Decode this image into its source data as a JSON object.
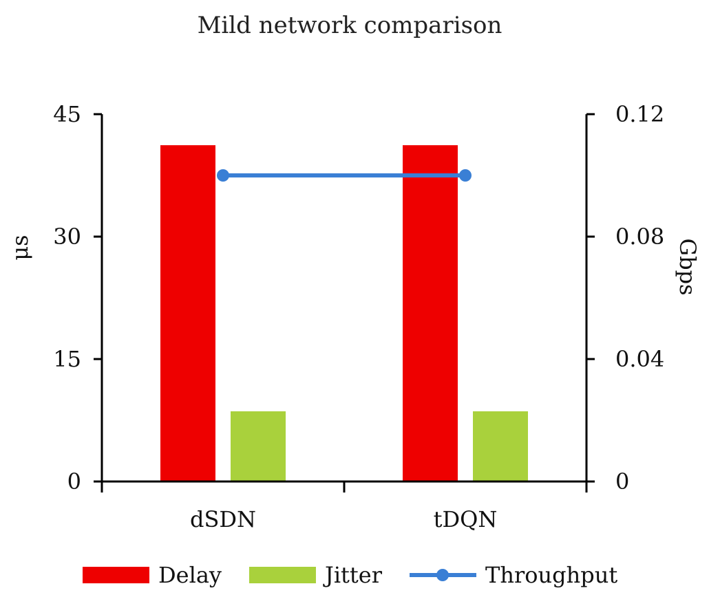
{
  "chart_data": {
    "type": "bar",
    "title": "Mild network  comparison",
    "categories": [
      "dSDN",
      "tDQN"
    ],
    "series": [
      {
        "name": "Delay",
        "kind": "bar",
        "axis": "left",
        "color": "#ee0000",
        "values": [
          41.2,
          41.2
        ]
      },
      {
        "name": "Jitter",
        "kind": "bar",
        "axis": "left",
        "color": "#a9d13c",
        "values": [
          8.6,
          8.6
        ]
      },
      {
        "name": "Throughput",
        "kind": "line",
        "axis": "right",
        "color": "#3a7fd5",
        "values": [
          0.1,
          0.1
        ]
      }
    ],
    "ylabel": "μs",
    "ylabel_right": "Gbps",
    "ylim": [
      0,
      45
    ],
    "ylim_right": [
      0,
      0.12
    ],
    "yticks": [
      "0",
      "15",
      "30",
      "45"
    ],
    "yticks_right": [
      "0",
      "0.04",
      "0.08",
      "0.12"
    ],
    "grid": false,
    "legend_position": "bottom"
  }
}
